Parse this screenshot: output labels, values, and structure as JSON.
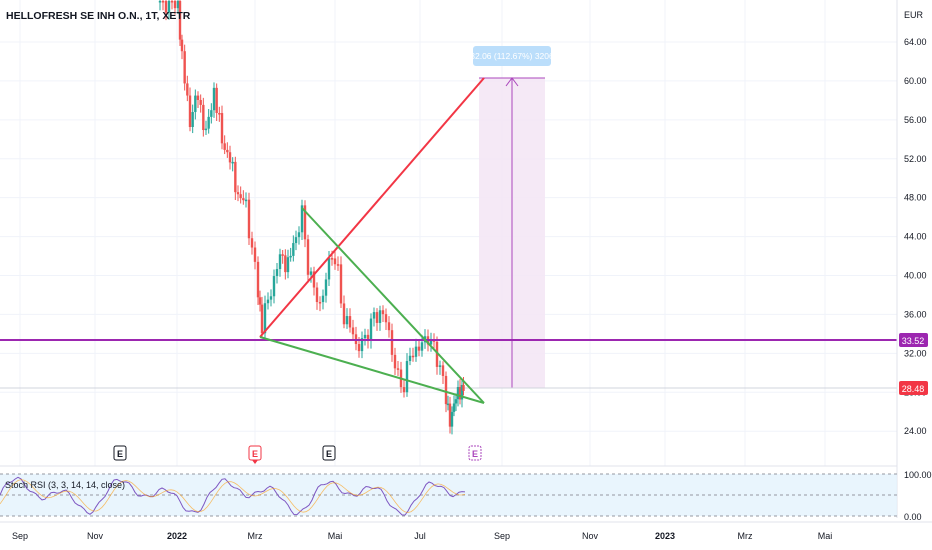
{
  "header": {
    "symbol_title": "HELLOFRESH SE INH O.N., 1T, XETR"
  },
  "price_axis": {
    "currency": "EUR",
    "ticks": [
      "64.00",
      "60.00",
      "56.00",
      "52.00",
      "48.00",
      "44.00",
      "40.00",
      "36.00",
      "32.00",
      "28.00",
      "24.00"
    ],
    "tick_values": [
      64,
      60,
      56,
      52,
      48,
      44,
      40,
      36,
      32,
      28,
      24
    ]
  },
  "price_labels": {
    "horizontal_level": "33.52",
    "last_price": "28.48"
  },
  "time_axis": {
    "labels": [
      "Sep",
      "Nov",
      "2022",
      "Mrz",
      "Mai",
      "Jul",
      "Sep",
      "Nov",
      "2023",
      "Mrz",
      "Mai"
    ]
  },
  "measure_tool": {
    "label": "32.06 (112.67%) 3206",
    "from_price": 28.48,
    "to_price": 60.54
  },
  "earnings_markers": [
    {
      "label": "E",
      "style": "past"
    },
    {
      "label": "E",
      "style": "past-red"
    },
    {
      "label": "E",
      "style": "past"
    },
    {
      "label": "E",
      "style": "upcoming"
    }
  ],
  "indicator": {
    "name": "Stoch RSI (3, 3, 14, 14, close)",
    "ticks": [
      "100.00",
      "0.00"
    ]
  },
  "colors": {
    "up": "#26a69a",
    "down": "#ef5350",
    "level": "#9c27b0",
    "trend_red": "#f23645",
    "trend_green": "#4caf50",
    "measure": "#ab47bc",
    "measure_label_bg": "#bbdefb",
    "osc_line": "#7e57c2",
    "last_price_bg": "#f23645"
  }
}
